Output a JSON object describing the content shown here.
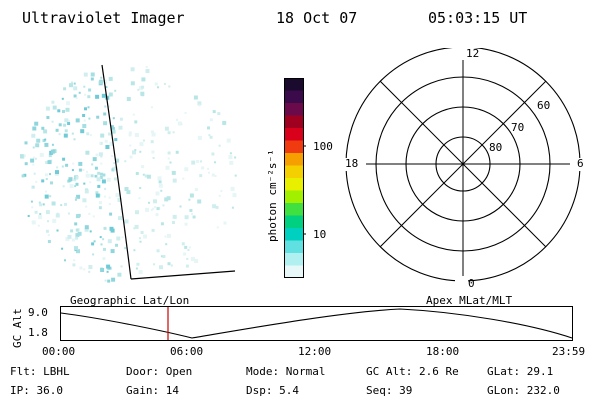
{
  "header": {
    "title": "Ultraviolet Imager",
    "date": "18 Oct 07",
    "time": "05:03:15 UT"
  },
  "colorbar": {
    "label": "photon cm⁻²s⁻¹",
    "ticks": [
      "100",
      "10"
    ],
    "colors": [
      "#1a0a2e",
      "#3a0a4a",
      "#6a0a4a",
      "#a00020",
      "#d8001a",
      "#f03a10",
      "#f5a000",
      "#f5d000",
      "#e8f000",
      "#a0f000",
      "#40e040",
      "#00d080",
      "#00d0c0",
      "#60e0e0",
      "#b0f0f0",
      "#e8f8f8"
    ]
  },
  "polar_plot": {
    "labels": {
      "top": "12",
      "bottom": "0",
      "left": "18",
      "right": "6"
    },
    "rings": [
      "60",
      "70",
      "80"
    ]
  },
  "timeline": {
    "left_label": "Geographic Lat/Lon",
    "right_label": "Apex MLat/MLT",
    "y_axis_label": "GC Alt",
    "y_ticks": [
      "9.0",
      "1.8"
    ],
    "x_ticks": [
      "00:00",
      "06:00",
      "12:00",
      "18:00",
      "23:59"
    ]
  },
  "info_grid": {
    "row1": [
      "Flt: LBHL",
      "Door: Open",
      "Mode: Normal",
      "GC Alt: 2.6 Re",
      "GLat:  29.1"
    ],
    "row2": [
      "IP: 36.0",
      "Gain: 14",
      "Dsp:    5.4",
      "Seq: 39",
      "GLon: 232.0"
    ]
  }
}
